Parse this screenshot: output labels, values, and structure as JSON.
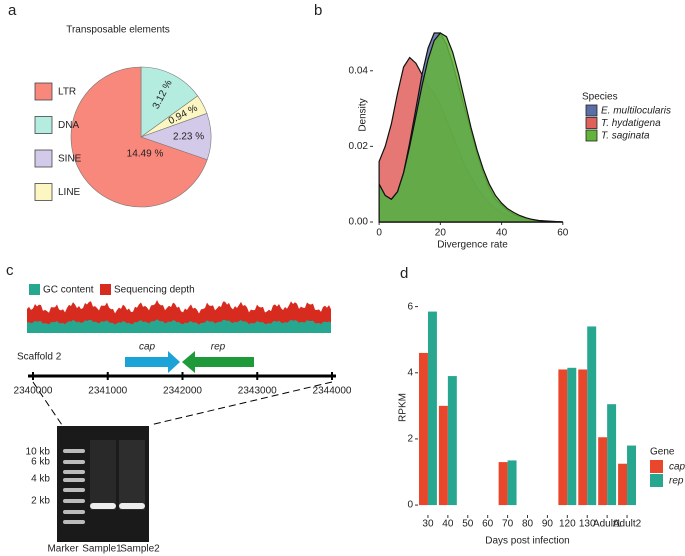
{
  "panel_labels": [
    "a",
    "b",
    "c",
    "d"
  ],
  "chart_data": [
    {
      "type": "pie",
      "title": "Transposable elements",
      "categories": [
        "LTR",
        "DNA",
        "SINE",
        "LINE"
      ],
      "values": [
        14.49,
        3.12,
        2.23,
        0.94
      ],
      "value_labels": [
        "14.49 %",
        "3.12 %",
        "2.23 %",
        "0.94 %"
      ],
      "colors": [
        "#f8877c",
        "#b4ede0",
        "#d3caea",
        "#fcf6c3"
      ]
    },
    {
      "type": "area",
      "xlabel": "Divergence rate",
      "ylabel": "Density",
      "legend_title": "Species",
      "x": [
        0,
        2,
        4,
        6,
        8,
        10,
        12,
        14,
        16,
        18,
        20,
        22,
        24,
        26,
        28,
        30,
        32,
        34,
        36,
        38,
        40,
        42,
        44,
        46,
        48,
        50,
        52,
        54,
        56,
        58,
        60
      ],
      "series": [
        {
          "name": "E. multilocularis",
          "color": "#5b6fa6",
          "values": [
            0.01,
            0.007,
            0.006,
            0.008,
            0.013,
            0.021,
            0.03,
            0.039,
            0.046,
            0.05,
            0.05,
            0.047,
            0.042,
            0.036,
            0.03,
            0.024,
            0.018,
            0.013,
            0.009,
            0.006,
            0.0045,
            0.003,
            0.002,
            0.0014,
            0.001,
            0.0006,
            0.0004,
            0.0002,
            0.0001,
            0.0001,
            0
          ]
        },
        {
          "name": "T. hydatigena",
          "color": "#e0605c",
          "values": [
            0.016,
            0.02,
            0.026,
            0.034,
            0.041,
            0.0435,
            0.042,
            0.039,
            0.036,
            0.034,
            0.031,
            0.027,
            0.023,
            0.019,
            0.015,
            0.012,
            0.009,
            0.007,
            0.005,
            0.0035,
            0.0025,
            0.0018,
            0.0012,
            0.0008,
            0.0005,
            0.0003,
            0.0002,
            0.0001,
            0.0001,
            0,
            0
          ]
        },
        {
          "name": "T. saginata",
          "color": "#63b43a",
          "values": [
            0.01,
            0.007,
            0.006,
            0.008,
            0.013,
            0.02,
            0.028,
            0.036,
            0.043,
            0.048,
            0.05,
            0.049,
            0.045,
            0.039,
            0.032,
            0.025,
            0.019,
            0.014,
            0.01,
            0.007,
            0.005,
            0.0035,
            0.0025,
            0.0017,
            0.0011,
            0.0007,
            0.0004,
            0.0003,
            0.0002,
            0.0001,
            0
          ]
        }
      ],
      "xlim": [
        -2,
        63
      ],
      "ylim": [
        0,
        0.0566
      ],
      "xticks": [
        0,
        20,
        40,
        60
      ],
      "yticks": [
        {
          "value": 0,
          "label": "0.00"
        },
        {
          "value": 0.02,
          "label": "0.02"
        },
        {
          "value": 0.04,
          "label": "0.04"
        }
      ]
    },
    {
      "type": "bar",
      "xlabel": "Days post infection",
      "ylabel": "RPKM",
      "legend_title": "Gene",
      "categories": [
        "30",
        "40",
        "50",
        "60",
        "70",
        "80",
        "90",
        "120",
        "130",
        "Adult1",
        "Adult2"
      ],
      "series": [
        {
          "name": "cap",
          "color": "#e8472c",
          "values": [
            4.6,
            3.0,
            null,
            null,
            1.3,
            null,
            null,
            4.1,
            4.1,
            2.05,
            1.25
          ]
        },
        {
          "name": "rep",
          "color": "#27a690",
          "values": [
            5.85,
            3.9,
            null,
            null,
            1.35,
            null,
            null,
            4.15,
            5.4,
            3.05,
            1.8
          ]
        }
      ],
      "ylim": [
        -0.3,
        6.2
      ],
      "yticks": [
        0,
        2,
        4,
        6
      ]
    }
  ],
  "diagram": {
    "track_legend": [
      {
        "label": "GC content",
        "color": "#27a690"
      },
      {
        "label": "Sequencing depth",
        "color": "#d62b1e"
      }
    ],
    "scaffold": "Scaffold 2",
    "genes": [
      {
        "label": "cap",
        "color": "#1ba3d8"
      },
      {
        "label": "rep",
        "color": "#1e9a3b"
      }
    ],
    "scaffold_ticks": [
      "2340000",
      "2341000",
      "2342000",
      "2343000",
      "2344000"
    ],
    "gel_markers": [
      "10 kb",
      "6 kb",
      "4 kb",
      "2 kb"
    ],
    "gel_lanes": [
      "Marker",
      "Sample1",
      "Sample2"
    ]
  }
}
